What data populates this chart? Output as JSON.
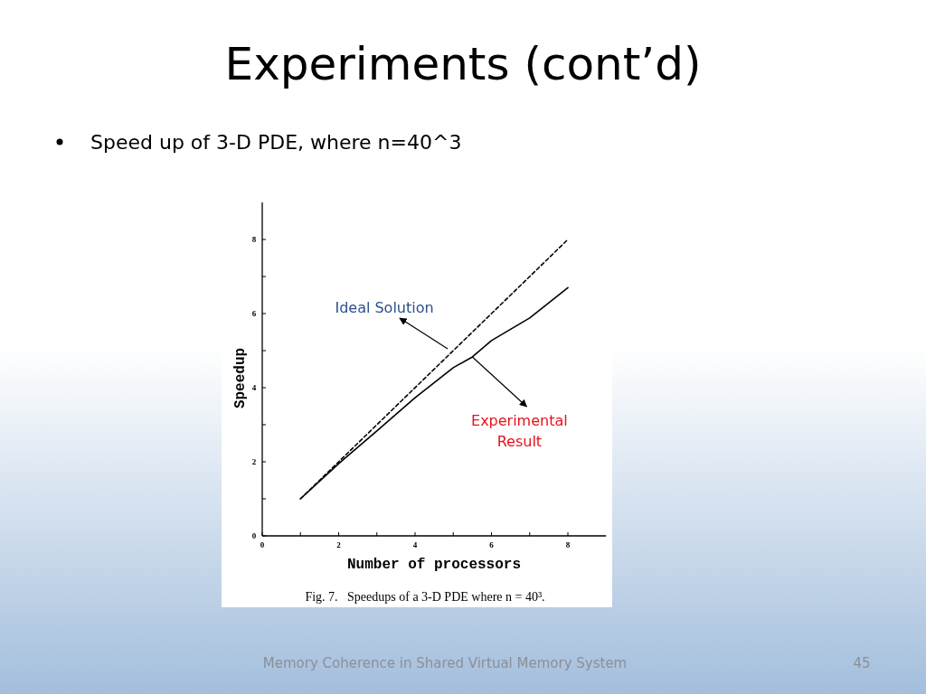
{
  "chart_data": {
    "type": "line",
    "title": "Experiments (cont’d)",
    "subtitle": "Speed up of 3-D PDE, where n=40^3",
    "xlabel": "Number of processors",
    "ylabel": "Speedup",
    "x": [
      1,
      2,
      3,
      4,
      5,
      5.5,
      6,
      7,
      8
    ],
    "series": [
      {
        "color": "#000000",
        "line_style": "dashed",
        "x": [
          1,
          8
        ],
        "values": [
          1,
          8
        ]
      },
      {
        "color": "#000000",
        "line_style": "solid",
        "values": [
          1,
          1.95,
          2.83,
          3.73,
          4.54,
          4.83,
          5.27,
          5.88,
          6.7
        ]
      }
    ],
    "xlim": [
      0,
      9
    ],
    "ylim": [
      0,
      9
    ],
    "xticks": [
      0,
      {
        "value": 1,
        "label": null
      },
      2,
      {
        "value": 3,
        "label": null
      },
      4,
      {
        "value": 5,
        "label": null
      },
      6,
      {
        "value": 7,
        "label": null
      },
      8
    ],
    "yticks": [
      0,
      {
        "value": 1,
        "label": null
      },
      2,
      {
        "value": 3,
        "label": null
      },
      4,
      {
        "value": 5,
        "label": null
      },
      6,
      {
        "value": 7,
        "label": null
      },
      8
    ],
    "grid": false,
    "marker": "none",
    "annotations": [
      {
        "text": "Ideal Solution",
        "x": 4.9,
        "y": 4.9
      },
      {
        "text": "Experimental Result",
        "x": 5.5,
        "y": 4.83
      },
      "Fig. 7.   Speedups of a 3-D PDE where n = 40³.",
      "Memory Coherence in Shared Virtual Memory System",
      "45"
    ]
  }
}
